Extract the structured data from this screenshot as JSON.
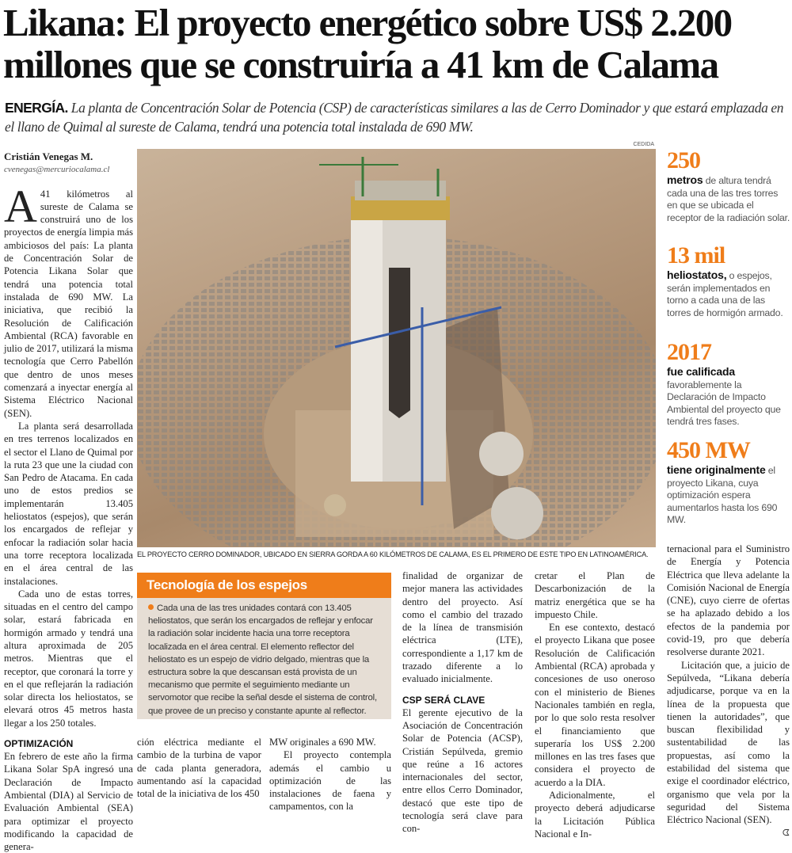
{
  "headline": {
    "line1": "Likana: El proyecto energético sobre US$ 2.200",
    "line2": "millones que se construiría a 41 km de Calama"
  },
  "deck": {
    "section": "ENERGÍA.",
    "text": "La planta de Concentración Solar de Potencia (CSP) de características similares a las de Cerro Dominador y que estará emplazada en el llano de Quimal al sureste de Calama, tendrá una potencia total instalada de 690 MW."
  },
  "byline": {
    "author": "Cristián Venegas M.",
    "email": "cvenegas@mercuriocalama.cl"
  },
  "body": {
    "dropcap": "A",
    "p1": "41 kilómetros al sureste de Calama se construirá uno de los proyectos de energía limpia más ambiciosos del país: La planta de Concentración Solar de Potencia Likana Solar que tendrá una potencia total instalada de 690 MW. La iniciativa, que recibió la Resolución de Calificación Ambiental (RCA) favorable en julio de 2017, utilizará la misma tecnología que Cerro Pabellón que dentro de unos meses comenzará a inyectar energía al Sistema Eléctrico Nacional (SEN).",
    "p2": "La planta será desarrollada en tres terrenos localizados en el sector el Llano de Quimal por la ruta 23 que une la ciudad con San Pedro de Atacama. En cada uno de estos predios se implementarán 13.405 heliostatos (espejos), que serán los encargados de reflejar y enfocar la radiación solar hacia una torre receptora localizada en el área central de las instalaciones.",
    "p3": "Cada uno de estas torres, situadas en el centro del campo solar, estará fabricada en hormigón armado y tendrá una altura aproximada de 205 metros. Mientras que el receptor, que coronará la torre y en el que reflejarán la radiación solar directa los heliostatos, se elevará otros 45 metros hasta llegar a los 250 totales.",
    "sub1": "OPTIMIZACIÓN",
    "p4a": "En febrero de este año la firma Likana Solar SpA ingresó una Declaración de Impacto Ambiental (DIA) al Servicio de Evaluación Ambiental (SEA) para optimizar el proyecto modificando la capacidad de genera-",
    "p4b": "ción eléctrica mediante el cambio de la turbina de vapor de cada planta generadora, aumentando así la capacidad total de la iniciativa de los 450",
    "p4c": "MW originales a 690 MW.",
    "p5a": "El proyecto contempla además el cambio u optimización de las instalaciones de faena y campamentos, con la",
    "p5b": "finalidad de organizar de mejor manera las actividades dentro del proyecto. Así como el cambio del trazado de la línea de transmisión eléctrica (LTE), correspondiente a 1,17 km de trazado diferente a lo evaluado inicialmente.",
    "sub2": "CSP SERÁ CLAVE",
    "p6a": "El gerente ejecutivo de la Asociación de Concentración Solar de Potencia (ACSP), Cristián Sepúlveda, gremio que reúne a 16 actores internacionales del sector, entre ellos Cerro Dominador, destacó que este tipo de tecnología será clave para con-",
    "p6b": "cretar el Plan de Descarbonización de la matriz energética que se ha impuesto Chile.",
    "p7": "En ese contexto, destacó el proyecto Likana que posee Resolución de Calificación Ambiental (RCA) aprobada y concesiones de uso oneroso con el ministerio de Bienes Nacionales también en regla, por lo que solo resta resolver el financiamiento que superaría los US$ 2.200 millones en las tres fases que considera el proyecto de acuerdo a la DIA.",
    "p8a": "Adicionalmente, el proyecto deberá adjudicarse la Licitación Pública Nacional e In-",
    "p8b": "ternacional para el Suministro de Energía y Potencia Eléctrica que lleva adelante la Comisión Nacional de Energía (CNE), cuyo cierre de ofertas se ha aplazado debido a los efectos de la pandemia por covid-19, pro que debería resolverse durante 2021.",
    "p9": "Licitación que, a juicio de Sepúlveda, “Likana debería adjudicarse, porque va en la línea de la propuesta que tienen la autoridades”, que buscan flexibilidad y sustentabilidad de las propuestas, así como la estabilidad del sistema que exige el coordinador eléctrico, organismo que vela por la seguridad del Sistema Eléctrico Nacional (SEN).",
    "endmark": "ᗧ"
  },
  "photo": {
    "credit": "CEDIDA",
    "caption": "EL PROYECTO CERRO DOMINADOR, UBICADO EN SIERRA GORDA A 60 KILÓMETROS DE CALAMA, ES EL PRIMERO DE ESTE TIPO EN LATINOAMÉRICA."
  },
  "box": {
    "title": "Tecnología de los espejos",
    "text": "Cada una de las tres unidades contará con 13.405 heliostatos, que serán los encargados de reflejar y enfocar la radiación solar incidente hacia una torre receptora localizada en el área central. El elemento reflector del heliostato es un espejo de vidrio delgado, mientras que la estructura sobre la que descansan está provista de un mecanismo que permite el seguimiento mediante un servomotor que recibe la señal desde el sistema de control, que provee de un preciso y constante apunte al reflector."
  },
  "facts": [
    {
      "number": "250",
      "lead": "metros",
      "text": "de altura tendrá cada una de las tres torres en que se ubicada el receptor de la radiación solar."
    },
    {
      "number": "13 mil",
      "lead": "heliostatos,",
      "text": "o espejos, serán implementados en torno a cada una de las torres de hormigón armado."
    },
    {
      "number": "2017",
      "lead": "fue calificada",
      "text": "favorablemente la Declaración de Impacto Ambiental del proyecto que tendrá tres fases."
    },
    {
      "number": "450 MW",
      "lead": "tiene originalmente",
      "text": "el proyecto Likana, cuya optimización espera aumentarlos hasta los 690 MW."
    }
  ],
  "colors": {
    "accent": "#ef7d1a",
    "box_bg": "#e6ded5"
  }
}
